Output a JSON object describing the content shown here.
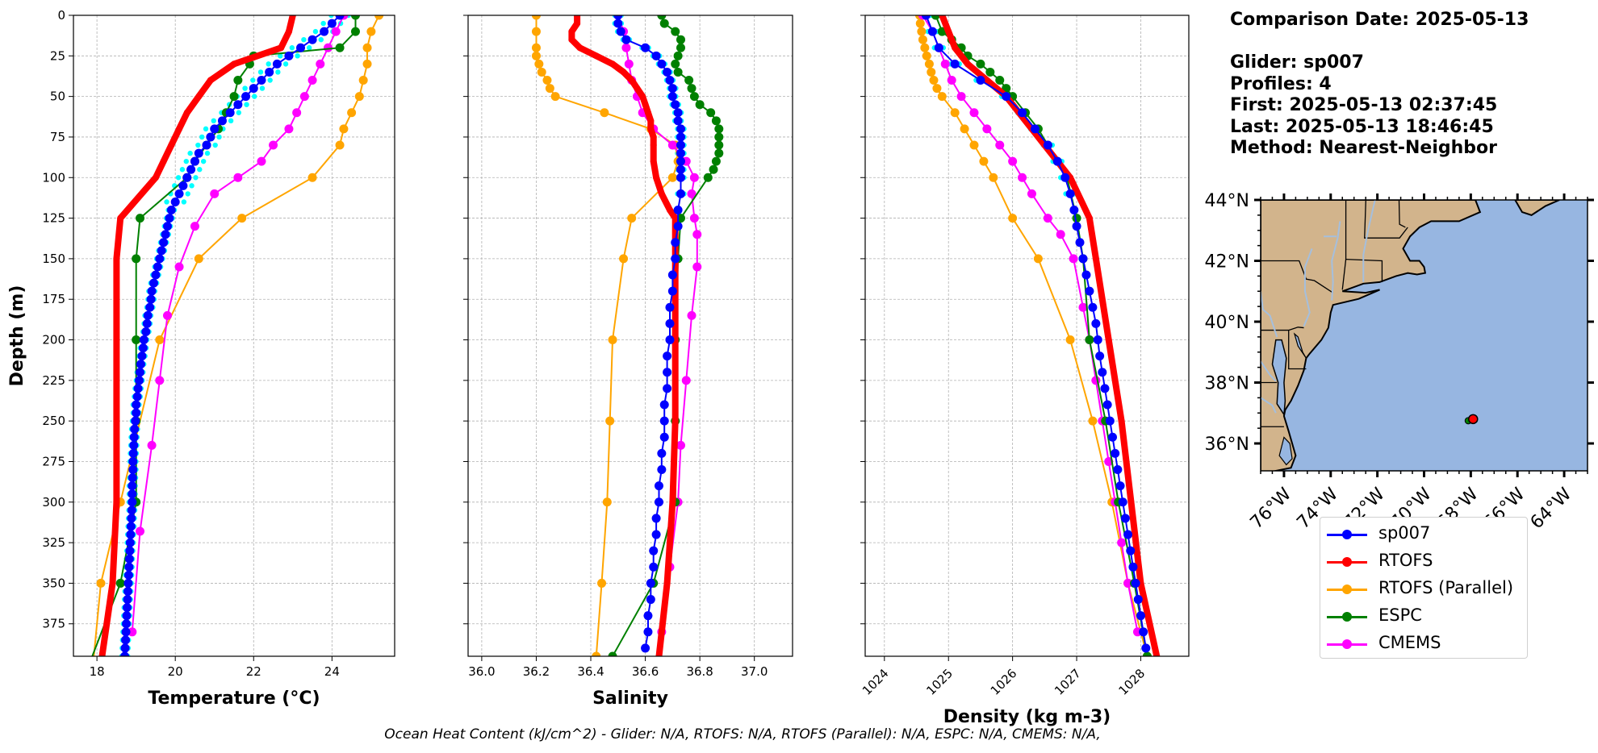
{
  "info": {
    "comparison_date": "Comparison Date: 2025-05-13",
    "glider": "Glider: sp007",
    "profiles": "Profiles: 4",
    "first": "First: 2025-05-13 02:37:45",
    "last": "Last: 2025-05-13 18:46:45",
    "method": "Method: Nearest-Neighbor"
  },
  "footer": "Ocean Heat Content (kJ/cm^2) - Glider: N/A,  RTOFS: N/A,  RTOFS (Parallel): N/A,  ESPC: N/A,  CMEMS: N/A,",
  "legend": [
    {
      "name": "sp007",
      "color": "#0000ff"
    },
    {
      "name": "RTOFS",
      "color": "#ff0000"
    },
    {
      "name": "RTOFS (Parallel)",
      "color": "#ffa500"
    },
    {
      "name": "ESPC",
      "color": "#008000"
    },
    {
      "name": "CMEMS",
      "color": "#ff00ff"
    }
  ],
  "colors": {
    "glider_raw": "#00ffff",
    "land": "#d2b48c",
    "ocean": "#97b6e1",
    "rivers": "#a5bfdd"
  },
  "map": {
    "lat_labels": [
      "44°N",
      "42°N",
      "40°N",
      "38°N",
      "36°N"
    ],
    "lon_labels": [
      "76°W",
      "74°W",
      "72°W",
      "70°W",
      "68°W",
      "66°W",
      "64°W"
    ],
    "glider_position": {
      "lon": -67.9,
      "lat": 36.8
    }
  },
  "chart_data": [
    {
      "type": "line",
      "xlabel": "Temperature (°C)",
      "ylabel": "Depth (m)",
      "xlim": [
        17.4,
        25.6
      ],
      "ylim": [
        395,
        0
      ],
      "xticks": [
        18,
        20,
        22,
        24
      ],
      "grid": true,
      "series": [
        {
          "name": "sp007",
          "color": "#0000ff",
          "depth": [
            0,
            5,
            10,
            15,
            20,
            25,
            30,
            35,
            40,
            45,
            50,
            55,
            60,
            65,
            70,
            75,
            80,
            85,
            90,
            95,
            100,
            105,
            110,
            115,
            120,
            125,
            130,
            135,
            140,
            145,
            150,
            155,
            160,
            165,
            170,
            175,
            180,
            185,
            190,
            195,
            200,
            205,
            210,
            215,
            220,
            225,
            230,
            235,
            240,
            245,
            250,
            255,
            260,
            265,
            270,
            275,
            280,
            285,
            290,
            295,
            300,
            305,
            310,
            315,
            320,
            325,
            330,
            335,
            340,
            345,
            350,
            355,
            360,
            365,
            370,
            375,
            380,
            385,
            390,
            395
          ],
          "values": [
            24.2,
            24.0,
            23.8,
            23.5,
            23.2,
            22.9,
            22.6,
            22.4,
            22.2,
            22.0,
            21.8,
            21.6,
            21.4,
            21.2,
            21.0,
            20.9,
            20.8,
            20.6,
            20.5,
            20.4,
            20.3,
            20.2,
            20.1,
            20.0,
            19.9,
            19.85,
            19.8,
            19.75,
            19.7,
            19.65,
            19.6,
            19.55,
            19.5,
            19.45,
            19.4,
            19.38,
            19.35,
            19.3,
            19.28,
            19.25,
            19.2,
            19.18,
            19.15,
            19.12,
            19.1,
            19.08,
            19.05,
            19.03,
            19.0,
            19.0,
            18.98,
            18.96,
            18.95,
            18.94,
            18.93,
            18.92,
            18.92,
            18.91,
            18.9,
            18.9,
            18.9,
            18.89,
            18.88,
            18.87,
            18.86,
            18.85,
            18.84,
            18.83,
            18.82,
            18.81,
            18.8,
            18.79,
            18.78,
            18.77,
            18.76,
            18.75,
            18.74,
            18.73,
            18.72,
            18.71
          ]
        },
        {
          "name": "RTOFS",
          "color": "#ff0000",
          "depth": [
            0,
            10,
            20,
            30,
            40,
            50,
            60,
            70,
            80,
            90,
            100,
            125,
            150,
            200,
            250,
            300,
            350,
            400
          ],
          "values": [
            23.0,
            22.9,
            22.7,
            21.5,
            20.9,
            20.6,
            20.3,
            20.1,
            19.9,
            19.7,
            19.5,
            18.6,
            18.5,
            18.5,
            18.5,
            18.5,
            18.4,
            18.1
          ]
        },
        {
          "name": "RTOFS (Parallel)",
          "color": "#ffa500",
          "depth": [
            0,
            10,
            20,
            30,
            40,
            50,
            60,
            70,
            80,
            100,
            125,
            150,
            200,
            300,
            350,
            400
          ],
          "values": [
            25.2,
            25.0,
            24.9,
            24.9,
            24.8,
            24.7,
            24.5,
            24.3,
            24.2,
            23.5,
            21.7,
            20.6,
            19.6,
            18.6,
            18.1,
            17.9
          ]
        },
        {
          "name": "ESPC",
          "color": "#008000",
          "depth": [
            0,
            10,
            20,
            25,
            30,
            40,
            50,
            60,
            70,
            80,
            90,
            100,
            125,
            150,
            200,
            250,
            300,
            350,
            400
          ],
          "values": [
            24.6,
            24.6,
            24.2,
            22.0,
            21.9,
            21.6,
            21.5,
            21.3,
            21.1,
            20.8,
            20.5,
            20.3,
            19.1,
            19.0,
            19.0,
            19.0,
            19.0,
            18.6,
            17.8
          ]
        },
        {
          "name": "CMEMS",
          "color": "#ff00ff",
          "depth": [
            0,
            10,
            20,
            30,
            40,
            50,
            60,
            70,
            80,
            90,
            100,
            110,
            130,
            155,
            185,
            225,
            265,
            318,
            380
          ],
          "values": [
            24.3,
            24.1,
            23.9,
            23.7,
            23.5,
            23.3,
            23.1,
            22.9,
            22.5,
            22.2,
            21.6,
            21.0,
            20.5,
            20.1,
            19.8,
            19.6,
            19.4,
            19.1,
            18.9
          ]
        }
      ]
    },
    {
      "type": "line",
      "xlabel": "Salinity",
      "ylim": [
        395,
        0
      ],
      "xlim": [
        35.95,
        37.14
      ],
      "xticks": [
        36.0,
        36.2,
        36.4,
        36.6,
        36.8,
        37.0
      ],
      "grid": true,
      "series": [
        {
          "name": "sp007",
          "color": "#0000ff",
          "depth": [
            0,
            5,
            10,
            15,
            20,
            25,
            30,
            35,
            40,
            45,
            50,
            55,
            60,
            65,
            70,
            75,
            80,
            85,
            90,
            95,
            100,
            110,
            120,
            130,
            140,
            150,
            160,
            170,
            180,
            190,
            200,
            210,
            220,
            230,
            240,
            250,
            260,
            270,
            280,
            290,
            300,
            310,
            320,
            330,
            340,
            350,
            360,
            370,
            380,
            390
          ],
          "values": [
            36.5,
            36.5,
            36.51,
            36.53,
            36.6,
            36.64,
            36.66,
            36.68,
            36.69,
            36.7,
            36.7,
            36.71,
            36.72,
            36.72,
            36.73,
            36.73,
            36.73,
            36.73,
            36.73,
            36.73,
            36.73,
            36.73,
            36.72,
            36.72,
            36.71,
            36.71,
            36.7,
            36.7,
            36.69,
            36.69,
            36.69,
            36.68,
            36.68,
            36.68,
            36.67,
            36.67,
            36.67,
            36.66,
            36.66,
            36.65,
            36.65,
            36.64,
            36.64,
            36.63,
            36.63,
            36.62,
            36.62,
            36.61,
            36.61,
            36.6
          ]
        },
        {
          "name": "RTOFS",
          "color": "#ff0000",
          "depth": [
            0,
            5,
            10,
            15,
            20,
            25,
            30,
            35,
            40,
            45,
            50,
            55,
            60,
            65,
            70,
            75,
            80,
            90,
            100,
            110,
            120,
            125,
            150,
            200,
            250,
            300,
            350,
            395
          ],
          "values": [
            36.35,
            36.35,
            36.33,
            36.33,
            36.36,
            36.42,
            36.48,
            36.52,
            36.55,
            36.57,
            36.59,
            36.6,
            36.61,
            36.62,
            36.62,
            36.63,
            36.63,
            36.63,
            36.64,
            36.66,
            36.69,
            36.71,
            36.71,
            36.71,
            36.71,
            36.7,
            36.68,
            36.65
          ]
        },
        {
          "name": "RTOFS (Parallel)",
          "color": "#ffa500",
          "depth": [
            0,
            10,
            20,
            25,
            30,
            35,
            40,
            45,
            50,
            60,
            70,
            80,
            90,
            100,
            125,
            150,
            200,
            250,
            300,
            350,
            395
          ],
          "values": [
            36.2,
            36.2,
            36.2,
            36.2,
            36.21,
            36.22,
            36.24,
            36.25,
            36.27,
            36.45,
            36.62,
            36.71,
            36.72,
            36.7,
            36.55,
            36.52,
            36.48,
            36.47,
            36.46,
            36.44,
            36.42
          ]
        },
        {
          "name": "ESPC",
          "color": "#008000",
          "depth": [
            0,
            5,
            10,
            15,
            20,
            25,
            30,
            35,
            40,
            45,
            50,
            55,
            60,
            65,
            70,
            75,
            80,
            85,
            90,
            95,
            100,
            125,
            150,
            200,
            250,
            300,
            350,
            395
          ],
          "values": [
            36.66,
            36.67,
            36.71,
            36.73,
            36.73,
            36.72,
            36.71,
            36.72,
            36.76,
            36.77,
            36.78,
            36.8,
            36.84,
            36.86,
            36.87,
            36.87,
            36.87,
            36.87,
            36.86,
            36.85,
            36.83,
            36.73,
            36.72,
            36.71,
            36.71,
            36.71,
            36.63,
            36.48
          ]
        },
        {
          "name": "CMEMS",
          "color": "#ff00ff",
          "depth": [
            0,
            10,
            20,
            30,
            40,
            50,
            60,
            70,
            80,
            90,
            100,
            110,
            125,
            135,
            155,
            185,
            225,
            265,
            300,
            340,
            380
          ],
          "values": [
            36.5,
            36.52,
            36.53,
            36.54,
            36.55,
            36.57,
            36.59,
            36.63,
            36.7,
            36.75,
            36.78,
            36.77,
            36.78,
            36.79,
            36.79,
            36.77,
            36.75,
            36.73,
            36.72,
            36.69,
            36.66
          ]
        }
      ]
    },
    {
      "type": "line",
      "xlabel": "Density (kg m-3)",
      "ylim": [
        395,
        0
      ],
      "xlim": [
        1023.7,
        1028.75
      ],
      "xticks": [
        1024,
        1025,
        1026,
        1027,
        1028
      ],
      "grid": true,
      "series": [
        {
          "name": "sp007",
          "color": "#0000ff",
          "depth": [
            0,
            10,
            20,
            30,
            40,
            50,
            60,
            70,
            80,
            90,
            100,
            110,
            120,
            130,
            140,
            150,
            160,
            170,
            180,
            190,
            200,
            210,
            220,
            230,
            240,
            250,
            260,
            270,
            280,
            290,
            300,
            310,
            320,
            330,
            340,
            350,
            360,
            370,
            380,
            390
          ],
          "values": [
            1024.65,
            1024.75,
            1024.85,
            1025.1,
            1025.5,
            1025.9,
            1026.15,
            1026.35,
            1026.55,
            1026.7,
            1026.82,
            1026.9,
            1026.96,
            1027.0,
            1027.05,
            1027.1,
            1027.15,
            1027.2,
            1027.25,
            1027.3,
            1027.33,
            1027.36,
            1027.4,
            1027.44,
            1027.48,
            1027.52,
            1027.56,
            1027.6,
            1027.64,
            1027.68,
            1027.72,
            1027.76,
            1027.8,
            1027.84,
            1027.88,
            1027.92,
            1027.96,
            1028.0,
            1028.04,
            1028.08
          ]
        },
        {
          "name": "RTOFS",
          "color": "#ff0000",
          "depth": [
            0,
            10,
            20,
            30,
            40,
            50,
            60,
            70,
            80,
            90,
            100,
            125,
            150,
            200,
            250,
            300,
            350,
            395
          ],
          "values": [
            1024.9,
            1025.0,
            1025.1,
            1025.3,
            1025.6,
            1025.9,
            1026.1,
            1026.3,
            1026.5,
            1026.7,
            1026.9,
            1027.2,
            1027.3,
            1027.5,
            1027.7,
            1027.85,
            1028.0,
            1028.25
          ]
        },
        {
          "name": "RTOFS (Parallel)",
          "color": "#ffa500",
          "depth": [
            0,
            5,
            10,
            15,
            20,
            25,
            30,
            35,
            40,
            45,
            50,
            60,
            70,
            80,
            90,
            100,
            125,
            150,
            200,
            250,
            300,
            350,
            395
          ],
          "values": [
            1024.55,
            1024.56,
            1024.58,
            1024.6,
            1024.63,
            1024.66,
            1024.7,
            1024.73,
            1024.77,
            1024.82,
            1024.9,
            1025.1,
            1025.25,
            1025.4,
            1025.55,
            1025.7,
            1026.0,
            1026.4,
            1026.9,
            1027.25,
            1027.55,
            1027.8,
            1028.1
          ]
        },
        {
          "name": "ESPC",
          "color": "#008000",
          "depth": [
            0,
            10,
            15,
            20,
            25,
            30,
            35,
            40,
            45,
            50,
            60,
            70,
            80,
            90,
            100,
            125,
            150,
            200,
            250,
            300,
            350,
            395
          ],
          "values": [
            1024.8,
            1024.9,
            1025.05,
            1025.2,
            1025.3,
            1025.5,
            1025.65,
            1025.8,
            1025.9,
            1026.0,
            1026.2,
            1026.4,
            1026.55,
            1026.7,
            1026.85,
            1027.0,
            1027.1,
            1027.2,
            1027.45,
            1027.65,
            1027.9,
            1028.1
          ]
        },
        {
          "name": "CMEMS",
          "color": "#ff00ff",
          "depth": [
            0,
            10,
            20,
            30,
            40,
            50,
            60,
            70,
            80,
            90,
            100,
            110,
            125,
            135,
            150,
            180,
            200,
            225,
            250,
            275,
            300,
            325,
            350,
            380
          ],
          "values": [
            1024.6,
            1024.75,
            1024.85,
            1024.95,
            1025.05,
            1025.2,
            1025.4,
            1025.6,
            1025.8,
            1026.0,
            1026.15,
            1026.3,
            1026.55,
            1026.75,
            1026.95,
            1027.1,
            1027.2,
            1027.3,
            1027.4,
            1027.5,
            1027.6,
            1027.7,
            1027.8,
            1027.95
          ]
        }
      ]
    }
  ]
}
